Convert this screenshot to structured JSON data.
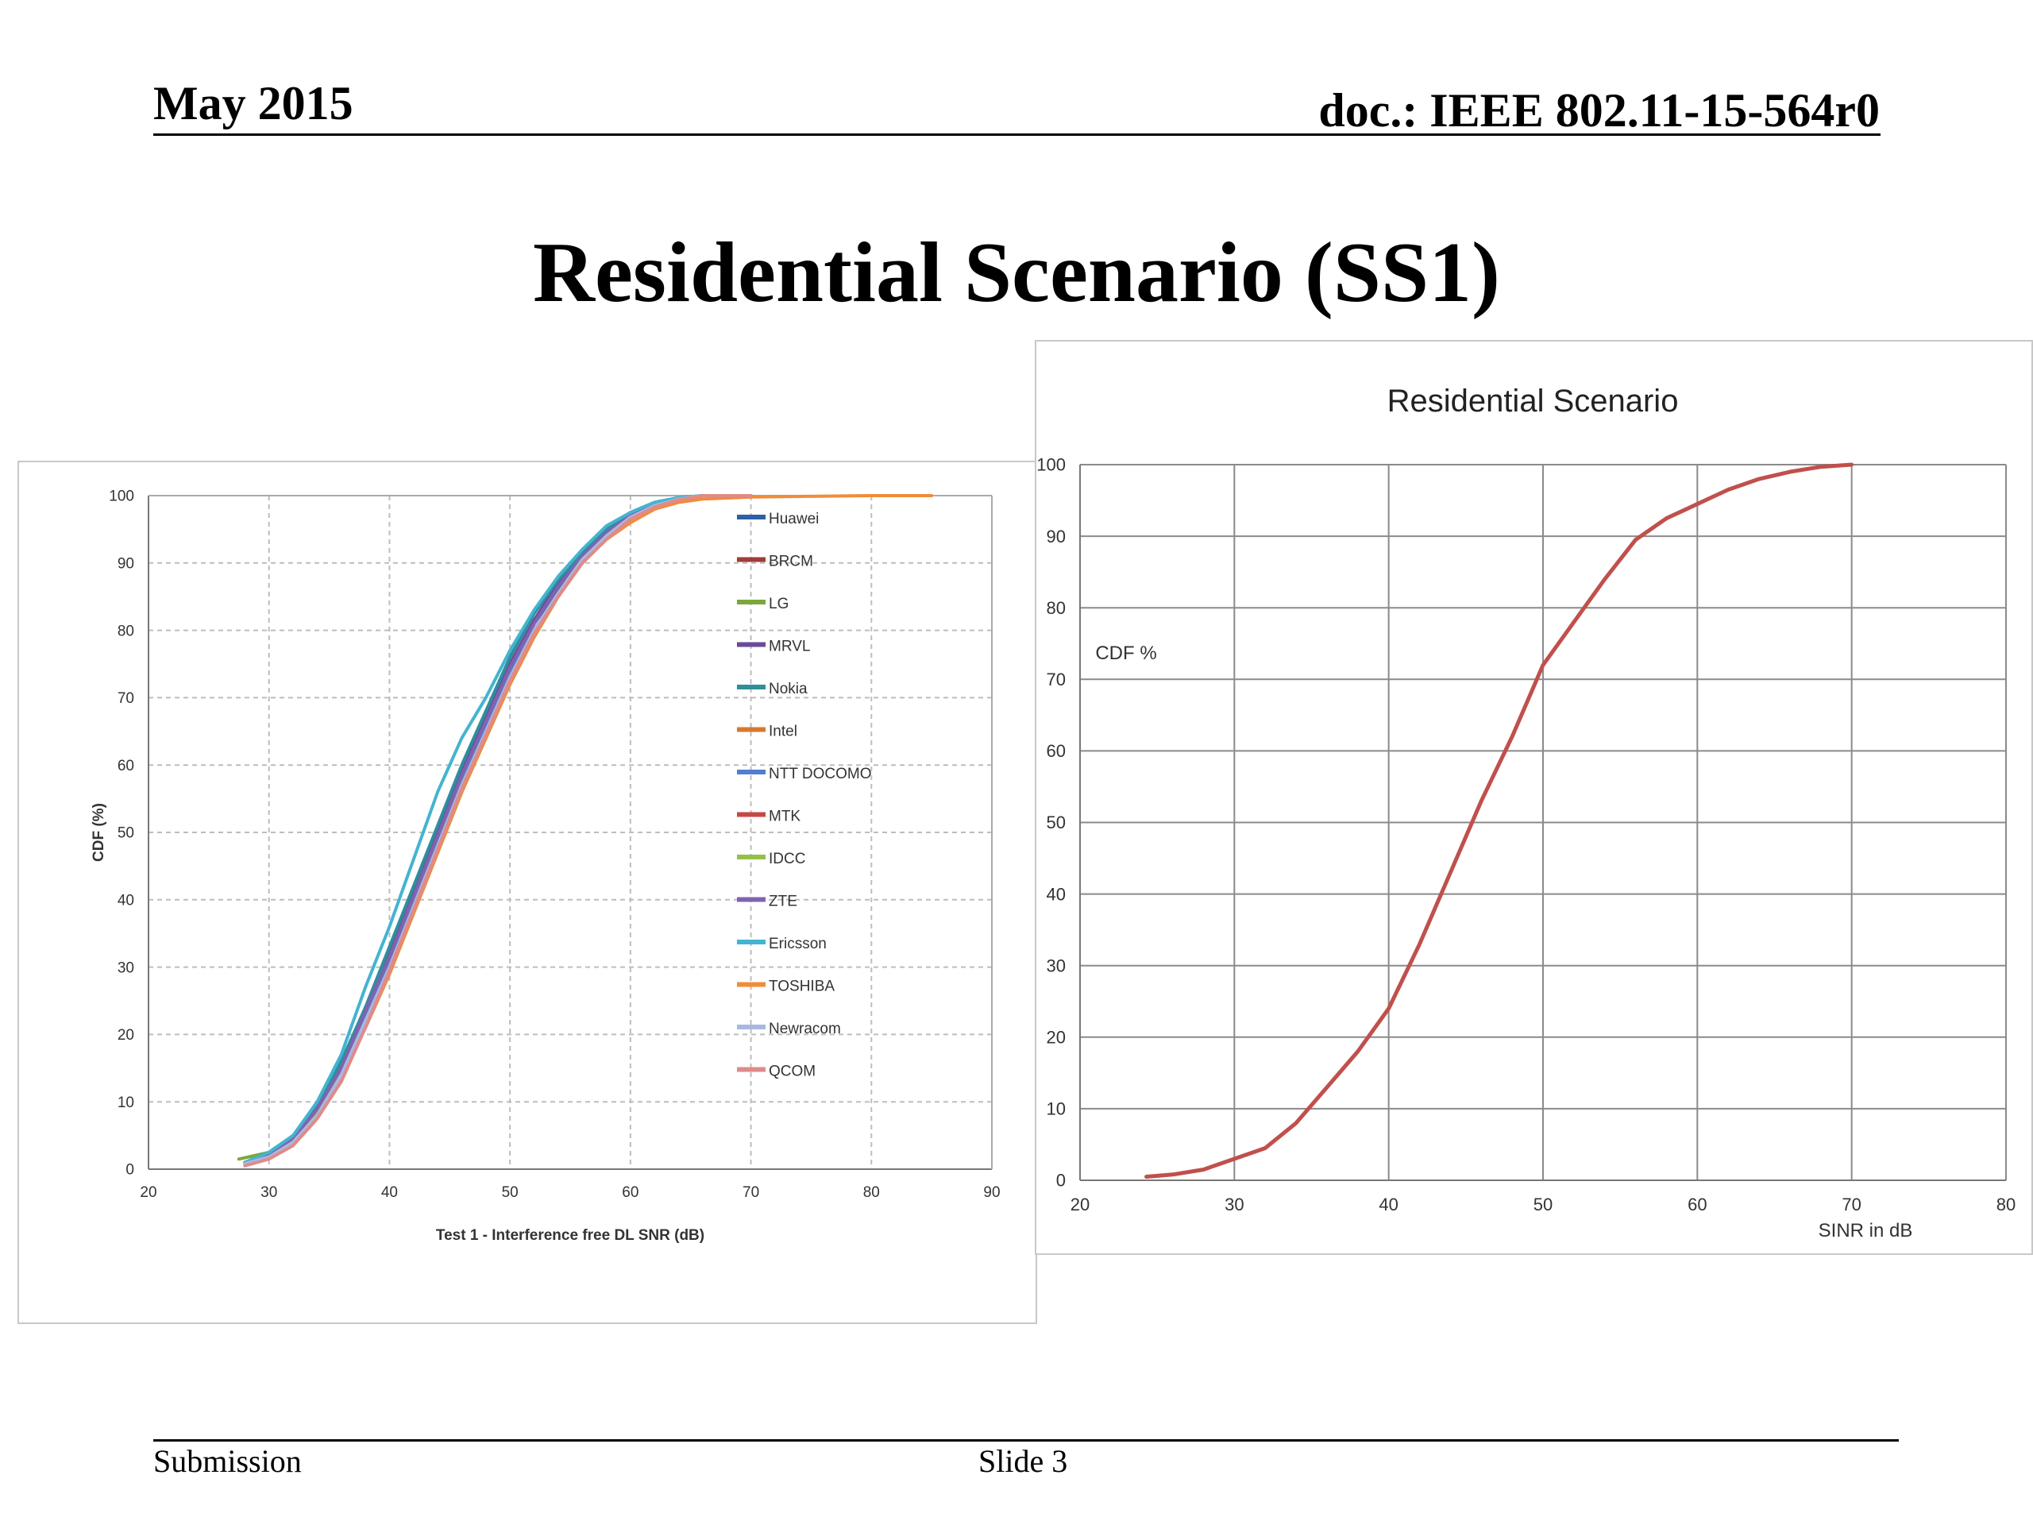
{
  "header": {
    "date": "May 2015",
    "doc_id": "doc.: IEEE 802.11-15-564r0"
  },
  "slide": {
    "title": "Residential Scenario (SS1)"
  },
  "footer": {
    "left": "Submission",
    "center": "Slide 3"
  },
  "chart_data": [
    {
      "type": "line",
      "title": "",
      "xlabel": "Test 1 - Interference free DL SNR (dB)",
      "ylabel": "CDF (%)",
      "xlim": [
        20,
        90
      ],
      "ylim": [
        0,
        100
      ],
      "xticks": [
        "20",
        "30",
        "40",
        "50",
        "60",
        "70",
        "80",
        "90"
      ],
      "yticks": [
        "0",
        "10",
        "20",
        "30",
        "40",
        "50",
        "60",
        "70",
        "80",
        "90",
        "100"
      ],
      "grid": "dashed",
      "legend": "right",
      "series": [
        {
          "name": "Huawei",
          "color": "#2e5fa8",
          "x": [
            28,
            30,
            32,
            34,
            36,
            38,
            40,
            42,
            44,
            46,
            48,
            50,
            52,
            54,
            56,
            58,
            60,
            62,
            64,
            66,
            70
          ],
          "values": [
            1,
            2,
            4.5,
            9,
            15,
            23,
            31,
            40,
            49,
            58,
            66,
            74,
            81,
            86,
            91,
            94,
            97,
            98.5,
            99.5,
            100,
            100
          ]
        },
        {
          "name": "BRCM",
          "color": "#a23b3b",
          "x": [
            28,
            30,
            32,
            34,
            36,
            38,
            40,
            42,
            44,
            46,
            48,
            50,
            52,
            54,
            56,
            58,
            60,
            62,
            64,
            66,
            70
          ],
          "values": [
            0.8,
            1.8,
            4,
            8,
            14,
            22,
            30,
            39,
            48,
            57,
            65,
            73,
            80,
            85.5,
            90.5,
            94,
            96.5,
            98.5,
            99.5,
            100,
            100
          ]
        },
        {
          "name": "LG",
          "color": "#7aa83a",
          "x": [
            27.5,
            30,
            32,
            34,
            36,
            38,
            40,
            42,
            44,
            46,
            48,
            50,
            52,
            54,
            56,
            58,
            60,
            62,
            64,
            66,
            70
          ],
          "values": [
            1.5,
            2.5,
            4.5,
            8.5,
            14,
            21,
            29,
            38,
            47,
            56,
            64,
            72,
            79,
            85,
            90,
            93.5,
            96.5,
            98,
            99.5,
            100,
            100
          ]
        },
        {
          "name": "MRVL",
          "color": "#6b4a9a",
          "x": [
            28,
            30,
            32,
            34,
            36,
            38,
            40,
            42,
            44,
            46,
            48,
            50,
            52,
            54,
            56,
            58,
            60,
            62,
            64,
            66,
            70
          ],
          "values": [
            1,
            2,
            4.5,
            9,
            15.5,
            24,
            32,
            41,
            50,
            59,
            67,
            75,
            81.5,
            87,
            91,
            94.5,
            97,
            98.5,
            99.5,
            100,
            100
          ]
        },
        {
          "name": "Nokia",
          "color": "#2d8f9c",
          "x": [
            28,
            30,
            32,
            34,
            36,
            38,
            40,
            42,
            44,
            46,
            48,
            50,
            52,
            54,
            56,
            58,
            60,
            62,
            64,
            66,
            70
          ],
          "values": [
            1,
            2.5,
            5,
            9.5,
            16,
            24,
            33,
            42,
            51,
            60,
            68,
            76,
            82.5,
            87.5,
            91.5,
            95,
            97.5,
            99,
            99.7,
            100,
            100
          ]
        },
        {
          "name": "Intel",
          "color": "#d9782d",
          "x": [
            28,
            30,
            32,
            34,
            36,
            38,
            40,
            42,
            44,
            46,
            48,
            50,
            52,
            54,
            56,
            58,
            60,
            62,
            64,
            66,
            70
          ],
          "values": [
            0.8,
            1.8,
            4,
            8,
            13.5,
            21,
            29,
            38,
            47,
            56,
            64,
            72,
            79,
            85,
            90,
            93.5,
            96,
            98,
            99.3,
            100,
            100
          ]
        },
        {
          "name": "NTT DOCOMO",
          "color": "#4f7fcf",
          "x": [
            28,
            30,
            32,
            34,
            36,
            38,
            40,
            42,
            44,
            46,
            48,
            50,
            52,
            54,
            56,
            58,
            60,
            62,
            64,
            66,
            70
          ],
          "values": [
            1,
            2,
            4.5,
            9,
            15,
            23,
            31,
            40,
            49,
            58,
            66,
            74,
            81,
            86.5,
            91,
            94.5,
            97,
            98.7,
            99.6,
            100,
            100
          ]
        },
        {
          "name": "MTK",
          "color": "#c44848",
          "x": [
            28,
            30,
            32,
            34,
            36,
            38,
            40,
            42,
            44,
            46,
            48,
            50,
            52,
            54,
            56,
            58,
            60,
            62,
            64,
            66,
            70
          ],
          "values": [
            0.8,
            1.8,
            4,
            8,
            14,
            22,
            30,
            39,
            48,
            57,
            65,
            73,
            80,
            85.5,
            90.5,
            94,
            96.5,
            98.3,
            99.4,
            100,
            100
          ]
        },
        {
          "name": "IDCC",
          "color": "#94bf4a",
          "x": [
            28,
            30,
            32,
            34,
            36,
            38,
            40,
            42,
            44,
            46,
            48,
            50,
            52,
            54,
            56,
            58,
            60,
            62,
            64,
            66,
            70
          ],
          "values": [
            1,
            2,
            4,
            8,
            13.5,
            21,
            29,
            38,
            47,
            56,
            64,
            72,
            79,
            85,
            90,
            93.5,
            96.5,
            98.2,
            99.4,
            100,
            100
          ]
        },
        {
          "name": "ZTE",
          "color": "#8062b0",
          "x": [
            28,
            30,
            32,
            34,
            36,
            38,
            40,
            42,
            44,
            46,
            48,
            50,
            52,
            54,
            56,
            58,
            60,
            62,
            64,
            66,
            70
          ],
          "values": [
            1,
            2,
            4.5,
            9,
            15,
            23.5,
            31.5,
            40.5,
            49.5,
            58.5,
            66.5,
            74.5,
            81,
            86.5,
            91,
            94.5,
            97,
            98.6,
            99.6,
            100,
            100
          ]
        },
        {
          "name": "Ericsson",
          "color": "#44b4d0",
          "x": [
            28,
            30,
            32,
            34,
            36,
            38,
            40,
            42,
            44,
            46,
            48,
            50,
            52,
            54,
            56,
            58,
            60,
            62,
            64,
            66,
            70
          ],
          "values": [
            1,
            2.5,
            5,
            10,
            17,
            27,
            36,
            46,
            56,
            64,
            70,
            77,
            83,
            88,
            92,
            95.5,
            97.5,
            99,
            99.7,
            100,
            100
          ]
        },
        {
          "name": "TOSHIBA",
          "color": "#f08c3a",
          "x": [
            28,
            30,
            32,
            34,
            36,
            38,
            40,
            42,
            44,
            46,
            48,
            50,
            52,
            54,
            56,
            58,
            60,
            62,
            64,
            66,
            70,
            75,
            80,
            85
          ],
          "values": [
            0.8,
            1.8,
            4,
            8,
            13.5,
            21,
            29,
            38,
            47,
            56,
            64,
            72,
            79,
            85,
            90,
            93.5,
            96,
            98,
            99,
            99.5,
            99.8,
            99.9,
            100,
            100
          ]
        },
        {
          "name": "Newracom",
          "color": "#a9b8e0",
          "x": [
            28,
            30,
            32,
            34,
            36,
            38,
            40,
            42,
            44,
            46,
            48,
            50,
            52,
            54,
            56,
            58,
            60,
            62,
            64,
            66,
            70
          ],
          "values": [
            0.8,
            1.8,
            4,
            8,
            14,
            22,
            30,
            39,
            48,
            57,
            65,
            73,
            80,
            85.5,
            90.5,
            94,
            96.8,
            98.5,
            99.5,
            100,
            100
          ]
        },
        {
          "name": "QCOM",
          "color": "#e08a8a",
          "x": [
            28,
            30,
            32,
            34,
            36,
            38,
            40,
            42,
            44,
            46,
            48,
            50,
            52,
            54,
            56,
            58,
            60,
            62,
            64,
            66,
            70
          ],
          "values": [
            0.5,
            1.5,
            3.5,
            7.5,
            13,
            21,
            29.5,
            38.5,
            47.5,
            56.5,
            64.5,
            72.5,
            79.5,
            85,
            90,
            93.5,
            96.5,
            98.3,
            99.4,
            100,
            100
          ]
        }
      ]
    },
    {
      "type": "line",
      "title": "Residential Scenario",
      "xlabel": "SINR in dB",
      "ylabel": "CDF %",
      "xlim": [
        20,
        80
      ],
      "ylim": [
        0,
        100
      ],
      "xticks": [
        "20",
        "30",
        "40",
        "50",
        "60",
        "70",
        "80"
      ],
      "yticks": [
        "0",
        "10",
        "20",
        "30",
        "40",
        "50",
        "60",
        "70",
        "80",
        "90",
        "100"
      ],
      "grid": "solid",
      "legend": "none",
      "series": [
        {
          "color": "#c0504d",
          "x": [
            24.3,
            26,
            28,
            30,
            32,
            34,
            36,
            38,
            40,
            42,
            44,
            46,
            48,
            49,
            50,
            52,
            54,
            56,
            58,
            60,
            62,
            64,
            66,
            68,
            70
          ],
          "values": [
            0.5,
            0.8,
            1.5,
            3,
            4.5,
            8,
            13,
            18,
            24,
            33,
            43,
            53,
            62,
            67,
            72,
            78,
            84,
            89.5,
            92.5,
            94.5,
            96.5,
            98,
            99,
            99.7,
            100
          ]
        }
      ]
    }
  ]
}
